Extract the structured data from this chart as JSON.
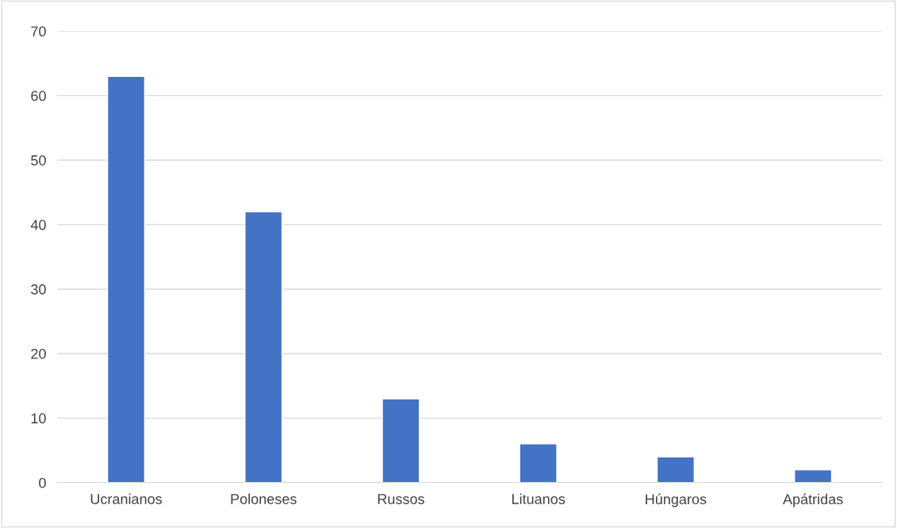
{
  "chart_data": {
    "type": "bar",
    "categories": [
      "Ucranianos",
      "Poloneses",
      "Russos",
      "Lituanos",
      "Húngaros",
      "Apátridas"
    ],
    "values": [
      63,
      42,
      13,
      6,
      4,
      2
    ],
    "color": "#4472c4",
    "ylim": [
      0,
      70
    ],
    "yticks": [
      0,
      10,
      20,
      30,
      40,
      50,
      60,
      70
    ],
    "grid": "y"
  }
}
